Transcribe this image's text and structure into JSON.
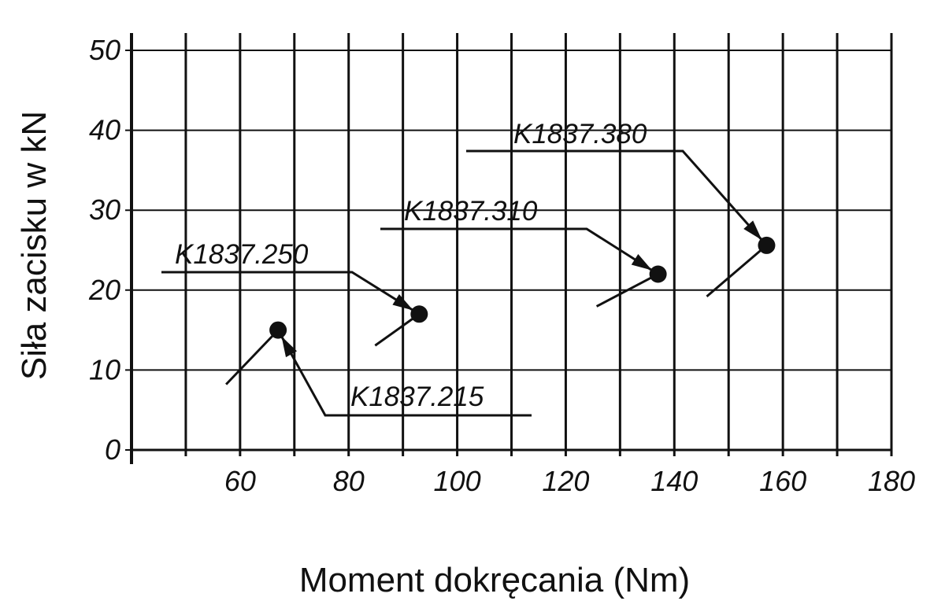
{
  "chart_data": {
    "type": "scatter",
    "x_label": "Moment dokręcania (Nm)",
    "y_label": "Siła zacisku w kN",
    "x": [
      67,
      93,
      137,
      157
    ],
    "values": [
      15,
      17,
      22,
      25.6
    ],
    "point_labels": [
      "K1837.215",
      "K1837.250",
      "K1837.310",
      "K1837.380"
    ],
    "color": "#111111",
    "xlim": [
      40,
      180
    ],
    "xticks": [
      60,
      80,
      100,
      120,
      140,
      160,
      180
    ],
    "x_minor_ticks": [
      40,
      50,
      70,
      90,
      110,
      130,
      150,
      170
    ],
    "ylim": [
      0,
      50
    ],
    "yticks": [
      0,
      10,
      20,
      30,
      40,
      50
    ],
    "grid": true
  }
}
